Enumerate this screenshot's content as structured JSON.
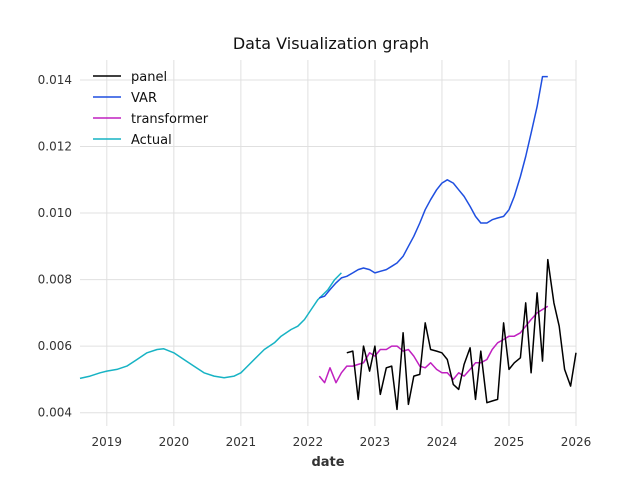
{
  "chart_data": {
    "type": "line",
    "title": "Data Visualization graph",
    "xlabel": "date",
    "ylabel": "",
    "xlim": [
      2018.6,
      2026.0
    ],
    "ylim": [
      0.0036,
      0.0146
    ],
    "x_ticks": [
      2019,
      2020,
      2021,
      2022,
      2023,
      2024,
      2025,
      2026
    ],
    "x_tick_labels": [
      "2019",
      "2020",
      "2021",
      "2022",
      "2023",
      "2024",
      "2025",
      "2026"
    ],
    "y_ticks": [
      0.004,
      0.006,
      0.008,
      0.01,
      0.012,
      0.014
    ],
    "y_tick_labels": [
      "0.004",
      "0.006",
      "0.008",
      "0.010",
      "0.012",
      "0.014"
    ],
    "grid": true,
    "legend": "top-left",
    "series": [
      {
        "name": "panel",
        "color": "#000000",
        "x": [
          2022.58,
          2022.67,
          2022.75,
          2022.83,
          2022.92,
          2023.0,
          2023.08,
          2023.17,
          2023.25,
          2023.33,
          2023.42,
          2023.5,
          2023.58,
          2023.67,
          2023.75,
          2023.83,
          2023.92,
          2024.0,
          2024.08,
          2024.17,
          2024.25,
          2024.33,
          2024.42,
          2024.5,
          2024.58,
          2024.67,
          2024.75,
          2024.83,
          2024.92,
          2025.0,
          2025.08,
          2025.17,
          2025.25,
          2025.33,
          2025.42,
          2025.5,
          2025.58,
          2025.67,
          2025.75,
          2025.83,
          2025.92,
          2026.0
        ],
        "values": [
          0.0058,
          0.00585,
          0.0044,
          0.006,
          0.00525,
          0.006,
          0.00455,
          0.00535,
          0.0054,
          0.0041,
          0.0064,
          0.00425,
          0.0051,
          0.00515,
          0.0067,
          0.0059,
          0.00585,
          0.0058,
          0.0056,
          0.00485,
          0.0047,
          0.00545,
          0.00595,
          0.0044,
          0.00585,
          0.0043,
          0.00435,
          0.0044,
          0.0067,
          0.0053,
          0.0055,
          0.00565,
          0.0073,
          0.0052,
          0.0076,
          0.00555,
          0.0086,
          0.0073,
          0.0066,
          0.0053,
          0.0048,
          0.0058
        ]
      },
      {
        "name": "VAR",
        "color": "#1f4fe0",
        "x": [
          2022.17,
          2022.25,
          2022.33,
          2022.42,
          2022.5,
          2022.58,
          2022.67,
          2022.75,
          2022.83,
          2022.92,
          2023.0,
          2023.08,
          2023.17,
          2023.25,
          2023.33,
          2023.42,
          2023.5,
          2023.58,
          2023.67,
          2023.75,
          2023.83,
          2023.92,
          2024.0,
          2024.08,
          2024.17,
          2024.25,
          2024.33,
          2024.42,
          2024.5,
          2024.58,
          2024.67,
          2024.75,
          2024.83,
          2024.92,
          2025.0,
          2025.08,
          2025.17,
          2025.25,
          2025.33,
          2025.42,
          2025.5,
          2025.58
        ],
        "values": [
          0.00745,
          0.0075,
          0.0077,
          0.0079,
          0.00805,
          0.0081,
          0.0082,
          0.0083,
          0.00835,
          0.0083,
          0.0082,
          0.00825,
          0.0083,
          0.0084,
          0.0085,
          0.0087,
          0.009,
          0.0093,
          0.0097,
          0.0101,
          0.0104,
          0.0107,
          0.0109,
          0.011,
          0.0109,
          0.0107,
          0.0105,
          0.0102,
          0.0099,
          0.0097,
          0.0097,
          0.0098,
          0.00985,
          0.0099,
          0.0101,
          0.0105,
          0.0111,
          0.0117,
          0.0124,
          0.0132,
          0.0141,
          0.0141
        ]
      },
      {
        "name": "transformer",
        "color": "#c020c0",
        "x": [
          2022.17,
          2022.25,
          2022.33,
          2022.42,
          2022.5,
          2022.58,
          2022.67,
          2022.75,
          2022.83,
          2022.92,
          2023.0,
          2023.08,
          2023.17,
          2023.25,
          2023.33,
          2023.42,
          2023.5,
          2023.58,
          2023.67,
          2023.75,
          2023.83,
          2023.92,
          2024.0,
          2024.08,
          2024.17,
          2024.25,
          2024.33,
          2024.42,
          2024.5,
          2024.58,
          2024.67,
          2024.75,
          2024.83,
          2024.92,
          2025.0,
          2025.08,
          2025.17,
          2025.25,
          2025.33,
          2025.42,
          2025.5,
          2025.58
        ],
        "values": [
          0.0051,
          0.0049,
          0.00535,
          0.0049,
          0.0052,
          0.0054,
          0.0054,
          0.00545,
          0.0055,
          0.0058,
          0.0057,
          0.0059,
          0.0059,
          0.006,
          0.006,
          0.00585,
          0.0059,
          0.0057,
          0.0054,
          0.00535,
          0.0055,
          0.0053,
          0.0052,
          0.0052,
          0.005,
          0.0052,
          0.0051,
          0.0053,
          0.0055,
          0.0055,
          0.0056,
          0.0059,
          0.0061,
          0.0062,
          0.0063,
          0.0063,
          0.0064,
          0.0066,
          0.0068,
          0.007,
          0.0071,
          0.0072
        ]
      },
      {
        "name": "Actual",
        "color": "#17b3c4",
        "x": [
          2018.6,
          2018.75,
          2018.9,
          2019.0,
          2019.15,
          2019.3,
          2019.45,
          2019.6,
          2019.75,
          2019.85,
          2020.0,
          2020.15,
          2020.3,
          2020.45,
          2020.6,
          2020.75,
          2020.9,
          2021.0,
          2021.1,
          2021.25,
          2021.35,
          2021.5,
          2021.6,
          2021.75,
          2021.85,
          2021.95,
          2022.05,
          2022.15,
          2022.3,
          2022.4,
          2022.5
        ],
        "values": [
          0.00503,
          0.0051,
          0.0052,
          0.00525,
          0.0053,
          0.0054,
          0.0056,
          0.0058,
          0.0059,
          0.00592,
          0.0058,
          0.0056,
          0.0054,
          0.0052,
          0.0051,
          0.00505,
          0.0051,
          0.0052,
          0.0054,
          0.0057,
          0.0059,
          0.0061,
          0.0063,
          0.0065,
          0.0066,
          0.0068,
          0.0071,
          0.0074,
          0.0077,
          0.008,
          0.0082
        ]
      }
    ]
  }
}
